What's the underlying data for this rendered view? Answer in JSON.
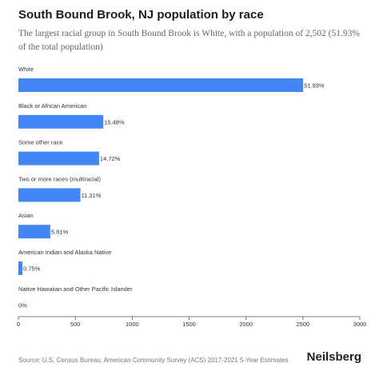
{
  "page": {
    "title": "South Bound Brook, NJ population by race",
    "subtitle": "The largest racial group in South Bound Brook is White, with a population of 2,502 (51.93% of the total population)",
    "source": "Source: U.S. Census Bureau, American Community Survey (ACS) 2017-2021 5-Year Estimates",
    "brand": "Neilsberg"
  },
  "colors": {
    "bar": "#4287f5",
    "axis": "#555555",
    "label": "#333333"
  },
  "chart_data": {
    "type": "bar",
    "orientation": "horizontal",
    "categories": [
      "White",
      "Black or African American",
      "Some other race",
      "Two or more races (multiracial)",
      "Asian",
      "American Indian and Alaska Native",
      "Native Hawaiian and Other Pacific Islander"
    ],
    "values": [
      2502,
      746,
      709,
      545,
      280,
      36,
      0
    ],
    "data_labels": [
      "51.93%",
      "15.48%",
      "14.72%",
      "11.31%",
      "5.81%",
      "0.75%",
      "0%"
    ],
    "xlim": [
      0,
      3000
    ],
    "xticks": [
      0,
      500,
      1000,
      1500,
      2000,
      2500,
      3000
    ],
    "grid": false,
    "legend": "none"
  }
}
